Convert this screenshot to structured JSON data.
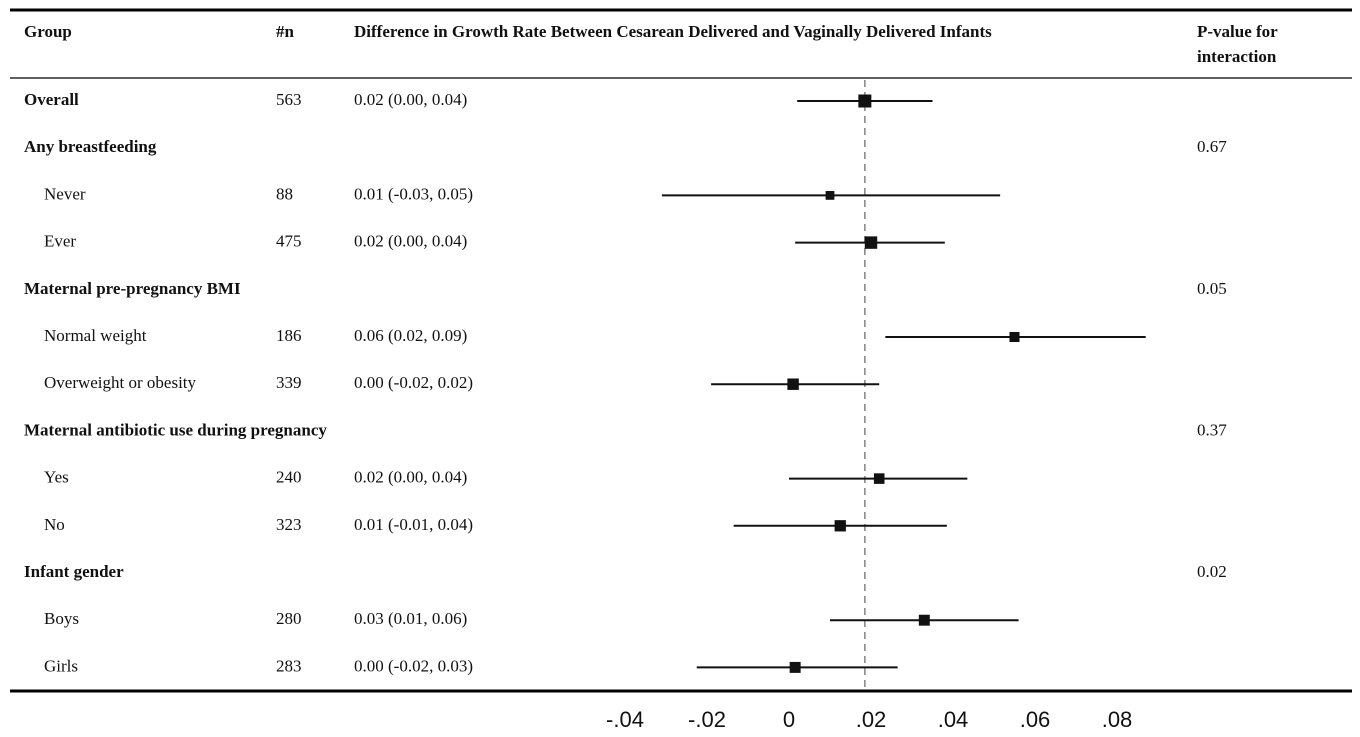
{
  "chart_data": {
    "type": "forest",
    "headers": {
      "group": "Group",
      "n": "#n",
      "estimate": "Difference in Growth Rate Between Cesarean Delivered and Vaginally Delivered Infants",
      "pvalue_line1": "P-value for",
      "pvalue_line2": "interaction"
    },
    "rows": [
      {
        "label": "Overall",
        "bold": true,
        "n": "563",
        "ci_text": "0.02 (0.00, 0.04)",
        "estimate": 0.0185,
        "lower": 0.002,
        "upper": 0.035,
        "pvalue": ""
      },
      {
        "label": "Any breastfeeding",
        "bold": true,
        "n": "",
        "ci_text": "",
        "pvalue": "0.67"
      },
      {
        "label": "Never",
        "bold": false,
        "n": "88",
        "ci_text": "0.01 (-0.03, 0.05)",
        "estimate": 0.01,
        "lower": -0.031,
        "upper": 0.0515,
        "pvalue": ""
      },
      {
        "label": "Ever",
        "bold": false,
        "n": "475",
        "ci_text": "0.02 (0.00, 0.04)",
        "estimate": 0.02,
        "lower": 0.0015,
        "upper": 0.038,
        "pvalue": ""
      },
      {
        "label": "Maternal pre-pregnancy BMI",
        "bold": true,
        "n": "",
        "ci_text": "",
        "pvalue": "0.05"
      },
      {
        "label": "Normal weight",
        "bold": false,
        "n": "186",
        "ci_text": "0.06 (0.02, 0.09)",
        "estimate": 0.055,
        "lower": 0.0235,
        "upper": 0.087,
        "pvalue": ""
      },
      {
        "label": "Overweight or obesity",
        "bold": false,
        "n": "339",
        "ci_text": "0.00 (-0.02, 0.02)",
        "estimate": 0.001,
        "lower": -0.019,
        "upper": 0.022,
        "pvalue": ""
      },
      {
        "label": "Maternal antibiotic use during pregnancy",
        "bold": true,
        "n": "",
        "ci_text": "",
        "pvalue": "0.37"
      },
      {
        "label": "Yes",
        "bold": false,
        "n": "240",
        "ci_text": "0.02 (0.00, 0.04)",
        "estimate": 0.022,
        "lower": 0.0,
        "upper": 0.0435,
        "pvalue": ""
      },
      {
        "label": "No",
        "bold": false,
        "n": "323",
        "ci_text": "0.01 (-0.01, 0.04)",
        "estimate": 0.0125,
        "lower": -0.0135,
        "upper": 0.0385,
        "pvalue": ""
      },
      {
        "label": "Infant gender",
        "bold": true,
        "n": "",
        "ci_text": "",
        "pvalue": "0.02"
      },
      {
        "label": "Boys",
        "bold": false,
        "n": "280",
        "ci_text": "0.03 (0.01, 0.06)",
        "estimate": 0.033,
        "lower": 0.01,
        "upper": 0.056,
        "pvalue": ""
      },
      {
        "label": "Girls",
        "bold": false,
        "n": "283",
        "ci_text": "0.00 (-0.02, 0.03)",
        "estimate": 0.0015,
        "lower": -0.0225,
        "upper": 0.0265,
        "pvalue": ""
      }
    ],
    "reference_line": 0.0185,
    "xlim": [
      -0.04,
      0.08
    ],
    "xticks": [
      -0.04,
      -0.02,
      0,
      0.02,
      0.04,
      0.06,
      0.08
    ],
    "xtick_labels": [
      "-.04",
      "-.02",
      "0",
      ".02",
      ".04",
      ".06",
      ".08"
    ],
    "grid": false,
    "legend": "none",
    "colors": {
      "mark": "#111111",
      "reference": "#8a8a8a",
      "rule": "#000000"
    }
  }
}
